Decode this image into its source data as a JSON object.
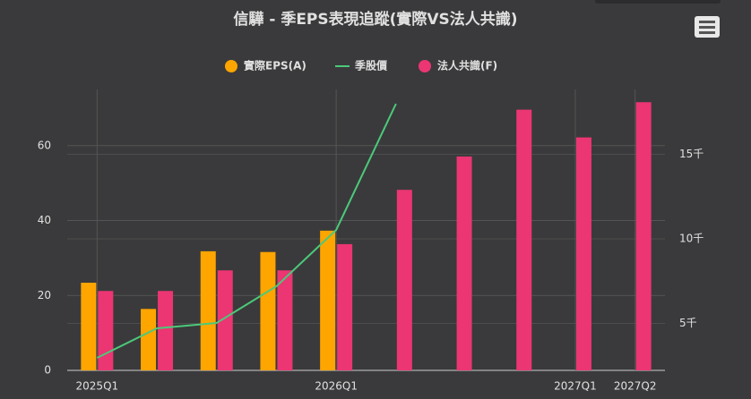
{
  "chart_data": {
    "type": "bar",
    "title": "信驊 - 季EPS表現追蹤(實際VS法人共識)",
    "categories": [
      "2025Q1",
      null,
      null,
      null,
      "2026Q1",
      null,
      null,
      null,
      "2027Q1",
      "2027Q2"
    ],
    "series": [
      {
        "name": "實際EPS(A)",
        "type": "bar",
        "color": "#ffa500",
        "values": [
          23.4,
          16.4,
          31.8,
          31.6,
          37.3,
          null,
          null,
          null,
          null,
          null
        ]
      },
      {
        "name": "季股價",
        "type": "line",
        "axis": "y2",
        "color": "#4cc97a",
        "values": [
          2963,
          4709,
          5026,
          7196,
          10529,
          17989,
          null,
          null,
          null,
          null
        ]
      },
      {
        "name": "法人共識(F)",
        "type": "bar",
        "color": "#ec3573",
        "values": [
          21.2,
          21.2,
          26.7,
          26.7,
          33.7,
          48.2,
          57.1,
          69.6,
          62.2,
          71.6
        ]
      }
    ],
    "ylim": [
      0,
      75
    ],
    "yticks": [
      0,
      20,
      40,
      60
    ],
    "y2lim": [
      2222,
      18836
    ],
    "y2ticks": [
      {
        "value": 5000,
        "label": "5千"
      },
      {
        "value": 10000,
        "label": "10千"
      },
      {
        "value": 15000,
        "label": "15千"
      }
    ],
    "grid": true
  }
}
